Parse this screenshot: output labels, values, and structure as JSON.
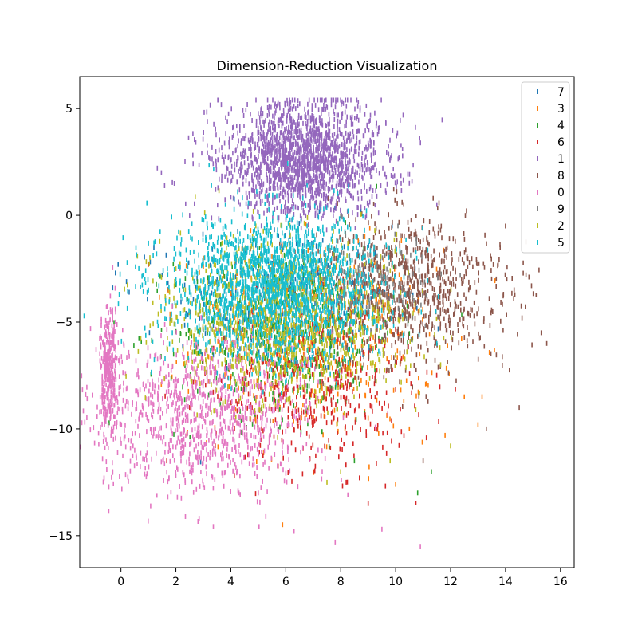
{
  "chart_data": {
    "type": "scatter",
    "title": "Dimension-Reduction Visualization",
    "xlabel": "",
    "ylabel": "",
    "xlim": [
      -1.5,
      16.5
    ],
    "ylim": [
      -16.5,
      6.5
    ],
    "x_ticks": [
      0,
      2,
      4,
      6,
      8,
      10,
      12,
      14,
      16
    ],
    "x_tick_labels": [
      "0",
      "2",
      "4",
      "6",
      "8",
      "10",
      "12",
      "14",
      "16"
    ],
    "y_ticks": [
      5,
      0,
      -5,
      -10,
      -15
    ],
    "y_tick_labels": [
      "5",
      "0",
      "−5",
      "−10",
      "−15"
    ],
    "grid": false,
    "legend_position": "top-right",
    "marker": "short vertical tick",
    "series": [
      {
        "name": "7",
        "color": "#1f77b4",
        "cluster": {
          "cx": 6.0,
          "cy": -4.0,
          "sx": 2.0,
          "sy": 1.8
        },
        "n": 350,
        "points": [
          [
            -0.1,
            -2.3
          ],
          [
            -0.2,
            -2.7
          ],
          [
            0.2,
            -3.1
          ],
          [
            0.3,
            -3.6
          ],
          [
            -0.3,
            -3.4
          ],
          [
            1.2,
            -1.5
          ],
          [
            1.5,
            -2.8
          ],
          [
            3.5,
            -3.0
          ],
          [
            5.0,
            -4.5
          ],
          [
            7.5,
            -5.0
          ]
        ]
      },
      {
        "name": "3",
        "color": "#ff7f0e",
        "cluster": {
          "cx": 7.0,
          "cy": -6.0,
          "sx": 2.2,
          "sy": 2.2
        },
        "n": 500,
        "points": [
          [
            13.0,
            -9.8
          ],
          [
            11.8,
            -10.3
          ],
          [
            12.5,
            -8.5
          ],
          [
            10.5,
            -10.0
          ],
          [
            9.0,
            -9.5
          ],
          [
            3.0,
            -2.0
          ],
          [
            5.0,
            -7.5
          ]
        ]
      },
      {
        "name": "4",
        "color": "#2ca02c",
        "cluster": {
          "cx": 6.0,
          "cy": -5.5,
          "sx": 2.0,
          "sy": 2.0
        },
        "n": 500,
        "points": [
          [
            10.8,
            -13.0
          ],
          [
            11.3,
            -12.0
          ],
          [
            8.5,
            -11.5
          ],
          [
            4.0,
            -3.0
          ]
        ]
      },
      {
        "name": "6",
        "color": "#d62728",
        "cluster": {
          "cx": 7.0,
          "cy": -8.0,
          "sx": 1.8,
          "sy": 1.9
        },
        "n": 450,
        "points": [
          [
            9.0,
            -13.5
          ],
          [
            8.2,
            -12.5
          ],
          [
            7.0,
            -12.0
          ],
          [
            1.0,
            -2.3
          ],
          [
            2.5,
            -9.0
          ]
        ]
      },
      {
        "name": "1",
        "color": "#9467bd",
        "cluster": {
          "cx": 6.6,
          "cy": 2.6,
          "sx": 1.5,
          "sy": 1.3
        },
        "n": 1900,
        "points": [
          [
            6.8,
            5.2
          ],
          [
            8.0,
            5.4
          ],
          [
            3.2,
            2.7
          ],
          [
            10.2,
            1.5
          ],
          [
            11.5,
            0.5
          ],
          [
            2.5,
            0.0
          ]
        ]
      },
      {
        "name": "8",
        "color": "#8c564b",
        "cluster": {
          "cx": 10.5,
          "cy": -3.5,
          "sx": 1.7,
          "sy": 1.7
        },
        "n": 900,
        "points": [
          [
            15.3,
            -5.5
          ],
          [
            15.5,
            -6.0
          ],
          [
            14.6,
            -4.8
          ],
          [
            14.5,
            -9.0
          ],
          [
            13.3,
            -10.0
          ],
          [
            11.0,
            -11.5
          ],
          [
            14.0,
            -0.5
          ]
        ]
      },
      {
        "name": "0",
        "color": "#e377c2",
        "cluster": {
          "cx": 3.0,
          "cy": -9.3,
          "sx": 2.0,
          "sy": 1.8
        },
        "n": 1400,
        "points": [
          [
            -0.5,
            -7.0
          ],
          [
            -0.4,
            -8.0
          ],
          [
            -0.6,
            -6.5
          ],
          [
            6.3,
            -14.8
          ],
          [
            7.8,
            -15.3
          ],
          [
            10.9,
            -15.5
          ],
          [
            9.5,
            -14.7
          ],
          [
            5.0,
            -13.0
          ],
          [
            -0.3,
            -12.0
          ],
          [
            0.5,
            -11.0
          ]
        ]
      },
      {
        "name": "9",
        "color": "#7f7f7f",
        "cluster": {
          "cx": 9.0,
          "cy": -3.0,
          "sx": 1.2,
          "sy": 1.2
        },
        "n": 200,
        "points": [
          [
            9.5,
            -3.0
          ],
          [
            9.0,
            -2.5
          ],
          [
            10.0,
            -3.5
          ]
        ]
      },
      {
        "name": "2",
        "color": "#bcbd22",
        "cluster": {
          "cx": 6.0,
          "cy": -5.0,
          "sx": 2.0,
          "sy": 1.8
        },
        "n": 1200,
        "points": [
          [
            12.0,
            -10.8
          ],
          [
            9.8,
            -11.5
          ],
          [
            8.0,
            -12.0
          ],
          [
            7.5,
            -12.5
          ],
          [
            2.0,
            -2.5
          ]
        ]
      },
      {
        "name": "5",
        "color": "#17becf",
        "cluster": {
          "cx": 5.6,
          "cy": -3.4,
          "sx": 1.9,
          "sy": 1.7
        },
        "n": 1900,
        "points": [
          [
            1.0,
            -1.3
          ],
          [
            1.3,
            -1.8
          ],
          [
            0.8,
            -2.8
          ],
          [
            1.0,
            -3.5
          ],
          [
            2.0,
            -3.0
          ],
          [
            11.5,
            -6.0
          ]
        ]
      }
    ]
  }
}
